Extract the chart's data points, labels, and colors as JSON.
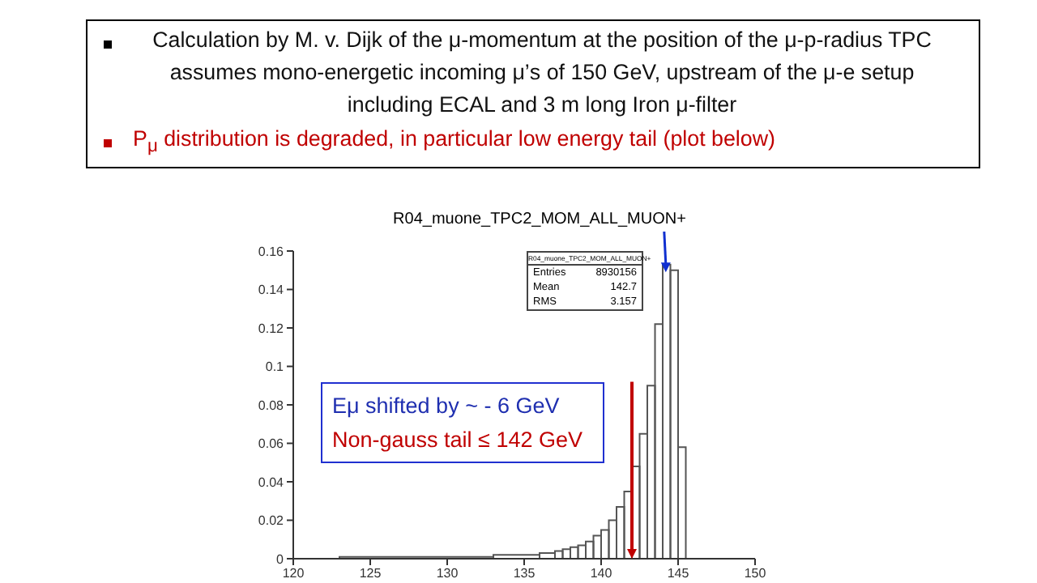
{
  "chart_data": {
    "type": "histogram",
    "title": "R04_muone_TPC2_MOM_ALL_MUON+",
    "bins": [
      123,
      133,
      136,
      137,
      137.5,
      138,
      138.5,
      139,
      139.5,
      140,
      140.5,
      141,
      141.5,
      142,
      142.5,
      143,
      143.5,
      144,
      144.5,
      145,
      145.5
    ],
    "values": [
      0.001,
      0.002,
      0.003,
      0.004,
      0.005,
      0.006,
      0.007,
      0.009,
      0.012,
      0.015,
      0.02,
      0.027,
      0.035,
      0.048,
      0.065,
      0.09,
      0.122,
      0.153,
      0.15,
      0.058
    ],
    "color": "#555555",
    "xlim": [
      120,
      150
    ],
    "xticks": [
      120,
      125,
      130,
      135,
      140,
      145,
      150
    ],
    "ylim": [
      0,
      0.16
    ],
    "yticks": [
      0,
      0.02,
      0.04,
      0.06,
      0.08,
      0.1,
      0.12,
      0.14,
      0.16
    ],
    "grid": false,
    "annotations": [
      "Calculation by M. v. Dijk of the μ-momentum at the position of the μ-p-radius TPC assumes mono-energetic  incoming μ’s of 150 GeV, upstream of the μ-e setup including ECAL and 3 m long Iron μ-filter",
      "P$_{μ}$ distribution is degraded, in particular low energy tail (plot below)",
      "Eμ shifted by ~ - 6 GeV",
      "Non-gauss tail ≤ 142 GeV",
      "R04_muone_TPC2_MOM_ALL_MUON+",
      "Entries",
      "8930156",
      "Mean",
      "142.7",
      "RMS",
      "3.157"
    ]
  }
}
